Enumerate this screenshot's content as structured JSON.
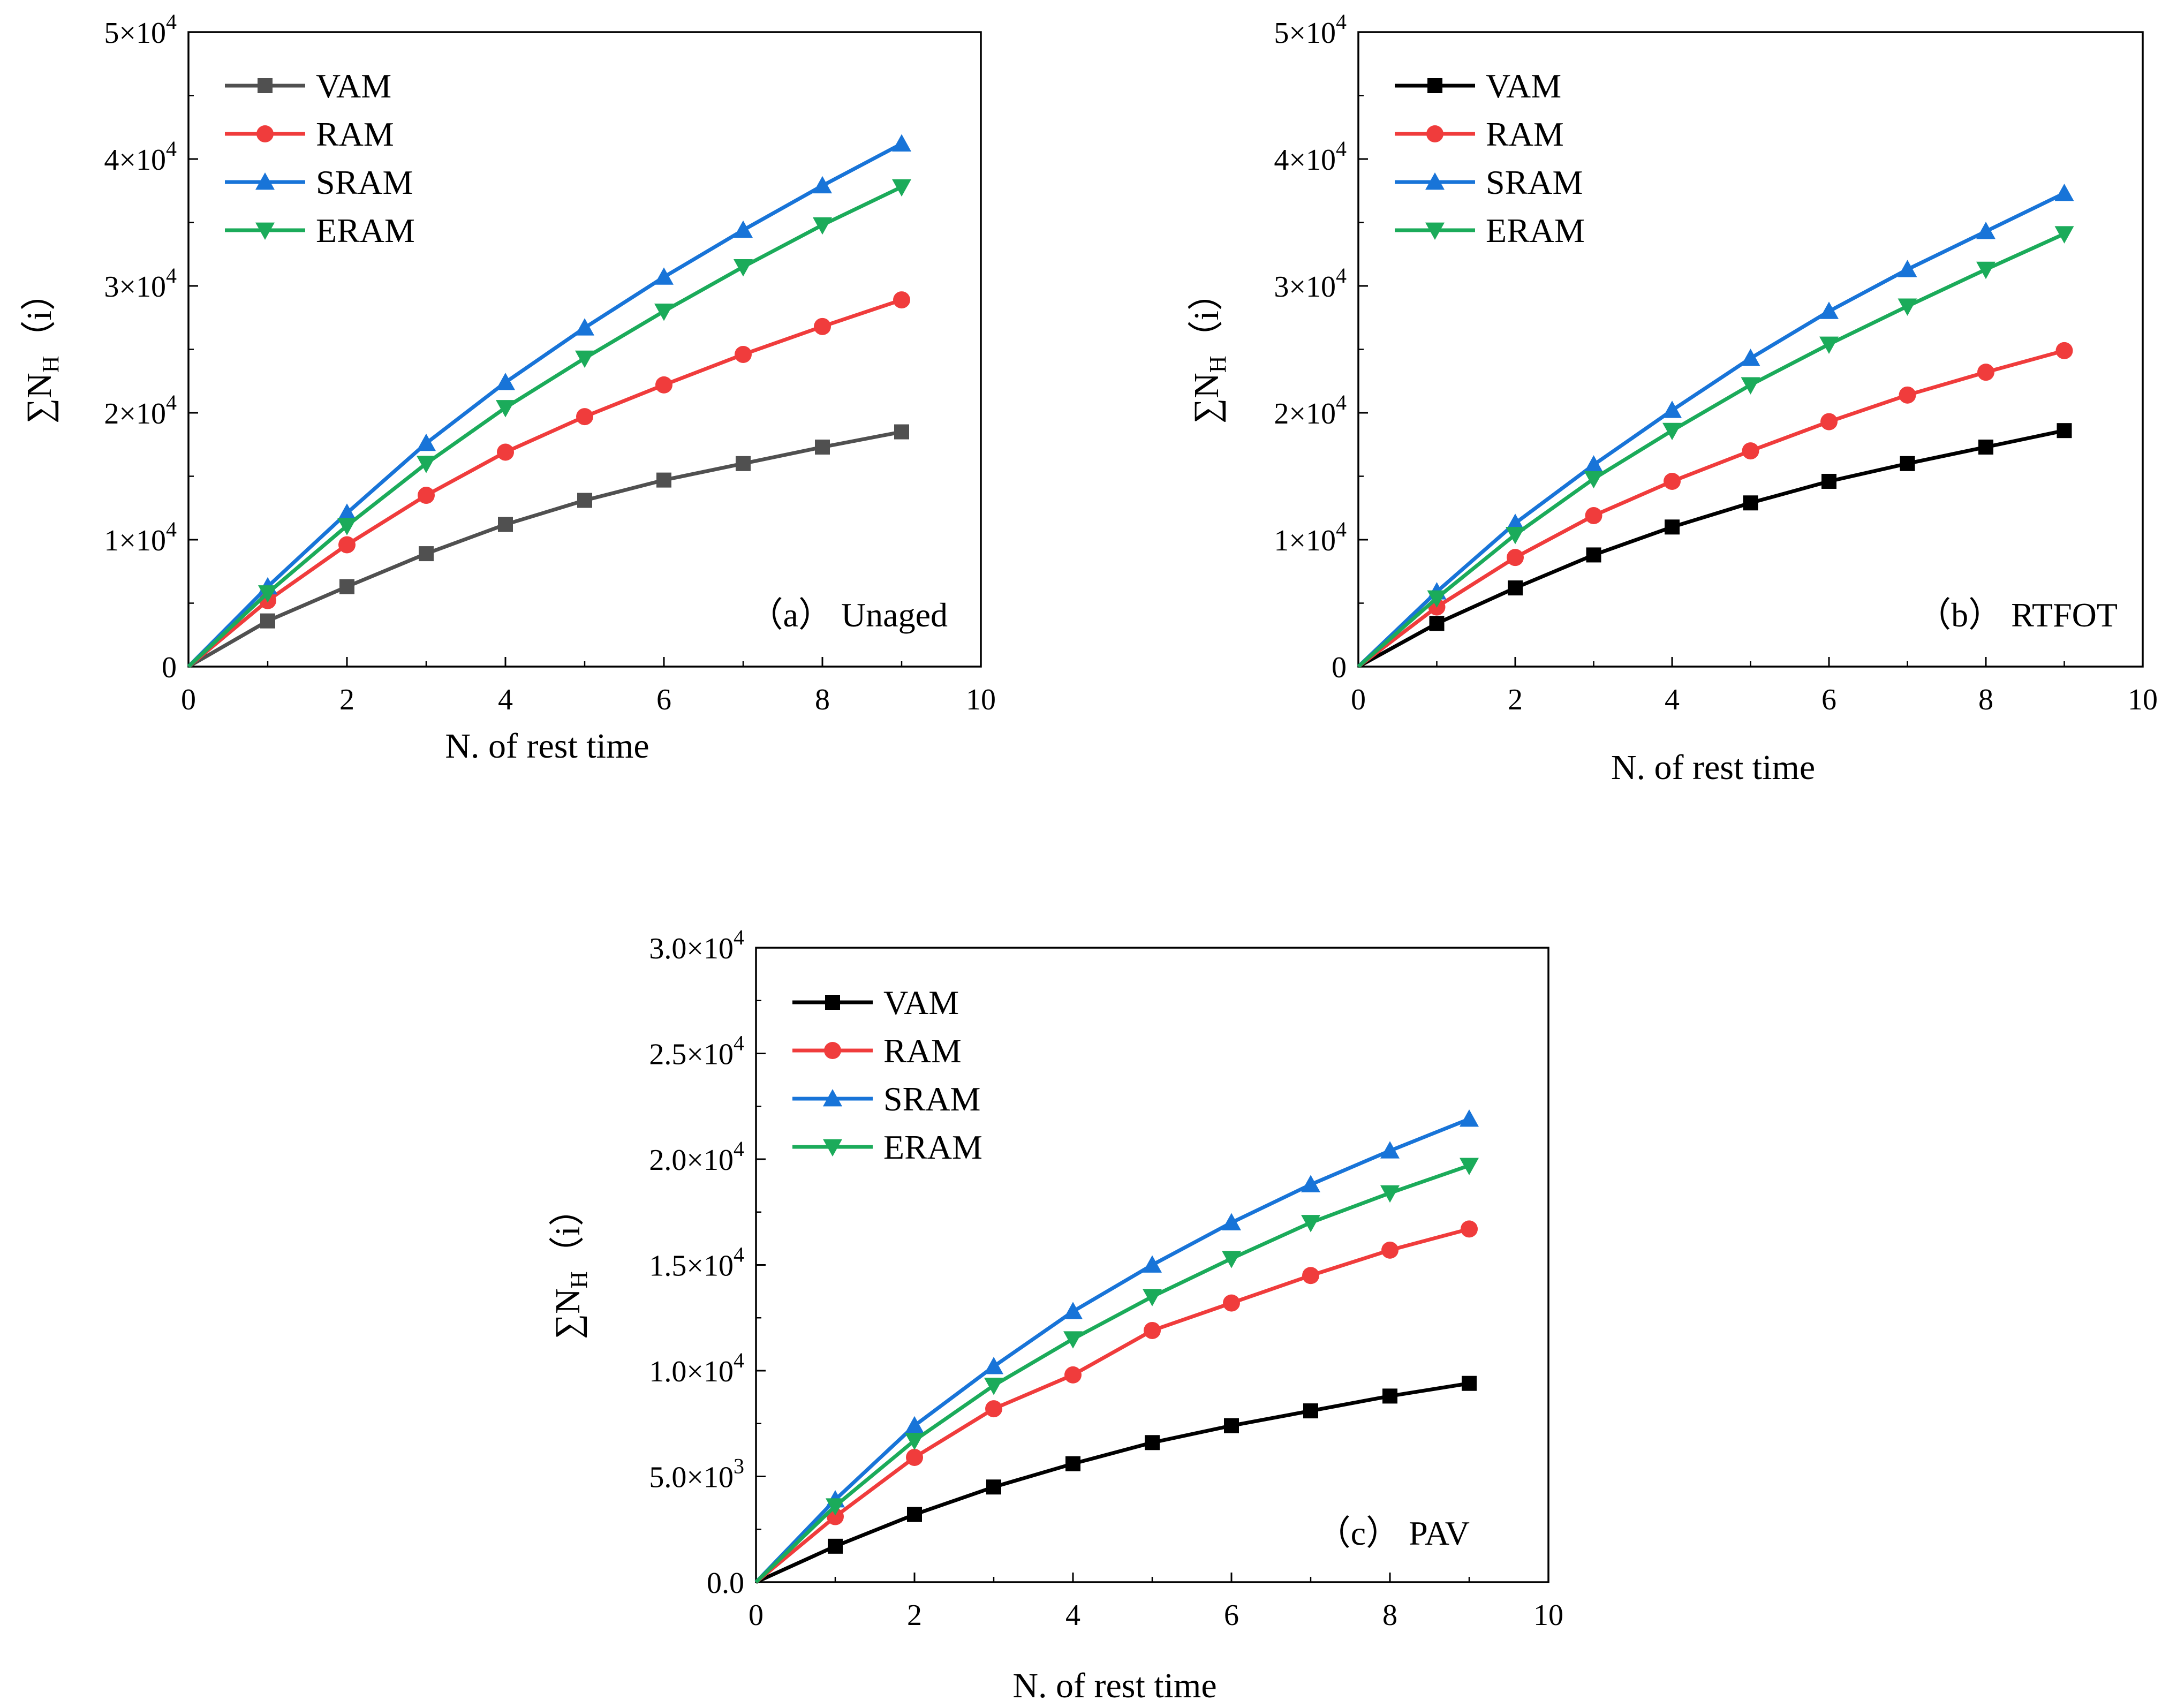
{
  "figure": {
    "description_free": true
  },
  "chart_data": [
    {
      "id": "a",
      "type": "line",
      "panel_label": "（a） Unaged",
      "xlabel": "N. of rest time",
      "ylabel_prefix": "∑N",
      "ylabel_sub": "H",
      "ylabel_suffix": "（i）",
      "xlim": [
        0,
        10
      ],
      "ylim": [
        0,
        50000
      ],
      "x_ticks": [
        0,
        2,
        4,
        6,
        8,
        10
      ],
      "x_tick_labels": [
        "0",
        "2",
        "4",
        "6",
        "8",
        "10"
      ],
      "y_ticks": [
        0,
        10000,
        20000,
        30000,
        40000,
        50000
      ],
      "y_tick_labels": [
        {
          "base": "0",
          "exp": ""
        },
        {
          "base": "1×10",
          "exp": "4"
        },
        {
          "base": "2×10",
          "exp": "4"
        },
        {
          "base": "3×10",
          "exp": "4"
        },
        {
          "base": "4×10",
          "exp": "4"
        },
        {
          "base": "5×10",
          "exp": "4"
        }
      ],
      "x": [
        0,
        1,
        2,
        3,
        4,
        5,
        6,
        7,
        8,
        9
      ],
      "legend_position": "top-left",
      "series": [
        {
          "name": "VAM",
          "color": "#505050",
          "marker": "square",
          "values": [
            0,
            3600,
            6300,
            8900,
            11200,
            13100,
            14700,
            16000,
            17300,
            18500
          ]
        },
        {
          "name": "RAM",
          "color": "#f03c3c",
          "marker": "circle",
          "values": [
            0,
            5200,
            9600,
            13500,
            16900,
            19700,
            22200,
            24600,
            26800,
            28900
          ]
        },
        {
          "name": "SRAM",
          "color": "#1874d8",
          "marker": "triangle-up",
          "values": [
            0,
            6300,
            12100,
            17600,
            22400,
            26700,
            30700,
            34400,
            37900,
            41200
          ]
        },
        {
          "name": "ERAM",
          "color": "#1bab5a",
          "marker": "triangle-down",
          "values": [
            0,
            5800,
            11100,
            16000,
            20400,
            24300,
            28000,
            31500,
            34800,
            37800
          ]
        }
      ]
    },
    {
      "id": "b",
      "type": "line",
      "panel_label": "（b） RTFOT",
      "xlabel": "N. of rest time",
      "ylabel_prefix": "∑N",
      "ylabel_sub": "H",
      "ylabel_suffix": "（i）",
      "xlim": [
        0,
        10
      ],
      "ylim": [
        0,
        50000
      ],
      "x_ticks": [
        0,
        2,
        4,
        6,
        8,
        10
      ],
      "x_tick_labels": [
        "0",
        "2",
        "4",
        "6",
        "8",
        "10"
      ],
      "y_ticks": [
        0,
        10000,
        20000,
        30000,
        40000,
        50000
      ],
      "y_tick_labels": [
        {
          "base": "0",
          "exp": ""
        },
        {
          "base": "1×10",
          "exp": "4"
        },
        {
          "base": "2×10",
          "exp": "4"
        },
        {
          "base": "3×10",
          "exp": "4"
        },
        {
          "base": "4×10",
          "exp": "4"
        },
        {
          "base": "5×10",
          "exp": "4"
        }
      ],
      "x": [
        0,
        1,
        2,
        3,
        4,
        5,
        6,
        7,
        8,
        9
      ],
      "legend_position": "top-left",
      "series": [
        {
          "name": "VAM",
          "color": "#000000",
          "marker": "square",
          "values": [
            0,
            3400,
            6200,
            8800,
            11000,
            12900,
            14600,
            16000,
            17300,
            18600
          ]
        },
        {
          "name": "RAM",
          "color": "#f03c3c",
          "marker": "circle",
          "values": [
            0,
            4700,
            8600,
            11900,
            14600,
            17000,
            19300,
            21400,
            23200,
            24900
          ]
        },
        {
          "name": "SRAM",
          "color": "#1874d8",
          "marker": "triangle-up",
          "values": [
            0,
            5900,
            11300,
            15900,
            20200,
            24300,
            28000,
            31300,
            34300,
            37300
          ]
        },
        {
          "name": "ERAM",
          "color": "#1bab5a",
          "marker": "triangle-down",
          "values": [
            0,
            5400,
            10400,
            14800,
            18600,
            22200,
            25400,
            28400,
            31300,
            34100
          ]
        }
      ]
    },
    {
      "id": "c",
      "type": "line",
      "panel_label": "（c） PAV",
      "xlabel": "N. of rest time",
      "ylabel_prefix": "∑N",
      "ylabel_sub": "H",
      "ylabel_suffix": "（i）",
      "xlim": [
        0,
        10
      ],
      "ylim": [
        0,
        30000
      ],
      "x_ticks": [
        0,
        2,
        4,
        6,
        8,
        10
      ],
      "x_tick_labels": [
        "0",
        "2",
        "4",
        "6",
        "8",
        "10"
      ],
      "y_ticks": [
        0,
        5000,
        10000,
        15000,
        20000,
        25000,
        30000
      ],
      "y_tick_labels": [
        {
          "base": "0.0",
          "exp": ""
        },
        {
          "base": "5.0×10",
          "exp": "3"
        },
        {
          "base": "1.0×10",
          "exp": "4"
        },
        {
          "base": "1.5×10",
          "exp": "4"
        },
        {
          "base": "2.0×10",
          "exp": "4"
        },
        {
          "base": "2.5×10",
          "exp": "4"
        },
        {
          "base": "3.0×10",
          "exp": "4"
        }
      ],
      "x": [
        0,
        1,
        2,
        3,
        4,
        5,
        6,
        7,
        8,
        9
      ],
      "legend_position": "top-left",
      "series": [
        {
          "name": "VAM",
          "color": "#000000",
          "marker": "square",
          "values": [
            0,
            1700,
            3200,
            4500,
            5600,
            6600,
            7400,
            8100,
            8800,
            9400
          ]
        },
        {
          "name": "RAM",
          "color": "#f03c3c",
          "marker": "circle",
          "values": [
            0,
            3100,
            5900,
            8200,
            9800,
            11900,
            13200,
            14500,
            15700,
            16700
          ]
        },
        {
          "name": "SRAM",
          "color": "#1874d8",
          "marker": "triangle-up",
          "values": [
            0,
            3900,
            7400,
            10200,
            12800,
            15000,
            17000,
            18800,
            20400,
            21900
          ]
        },
        {
          "name": "ERAM",
          "color": "#1bab5a",
          "marker": "triangle-down",
          "values": [
            0,
            3600,
            6700,
            9300,
            11500,
            13500,
            15300,
            17000,
            18400,
            19700
          ]
        }
      ]
    }
  ]
}
